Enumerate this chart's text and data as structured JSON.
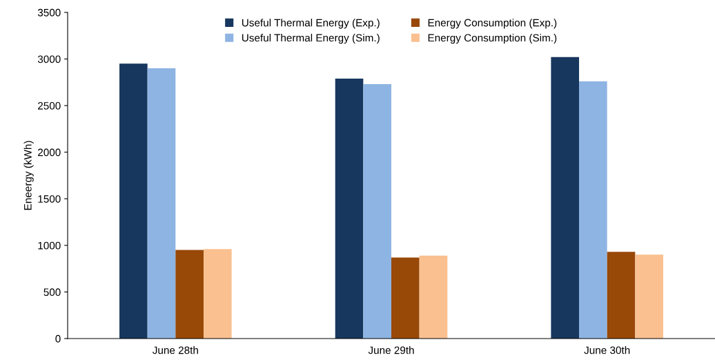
{
  "chart_data": {
    "type": "bar",
    "ylabel": "Eneergy (kWh)",
    "categories": [
      "June 28th",
      "June 29th",
      "June 30th"
    ],
    "series": [
      {
        "name": "Useful Thermal Energy (Exp.)",
        "color": "#17375e",
        "values": [
          2950,
          2790,
          3020
        ]
      },
      {
        "name": "Useful Thermal Energy (Sim.)",
        "color": "#8eb4e3",
        "values": [
          2900,
          2730,
          2760
        ]
      },
      {
        "name": "Energy Consumption (Exp.)",
        "color": "#984807",
        "values": [
          950,
          870,
          930
        ]
      },
      {
        "name": "Energy Consumption (Sim.)",
        "color": "#fac090",
        "values": [
          960,
          890,
          900
        ]
      }
    ],
    "ylim": [
      0,
      3500
    ],
    "yticks": [
      0,
      500,
      1000,
      1500,
      2000,
      2500,
      3000,
      3500
    ],
    "grid": false,
    "legend": "top"
  }
}
